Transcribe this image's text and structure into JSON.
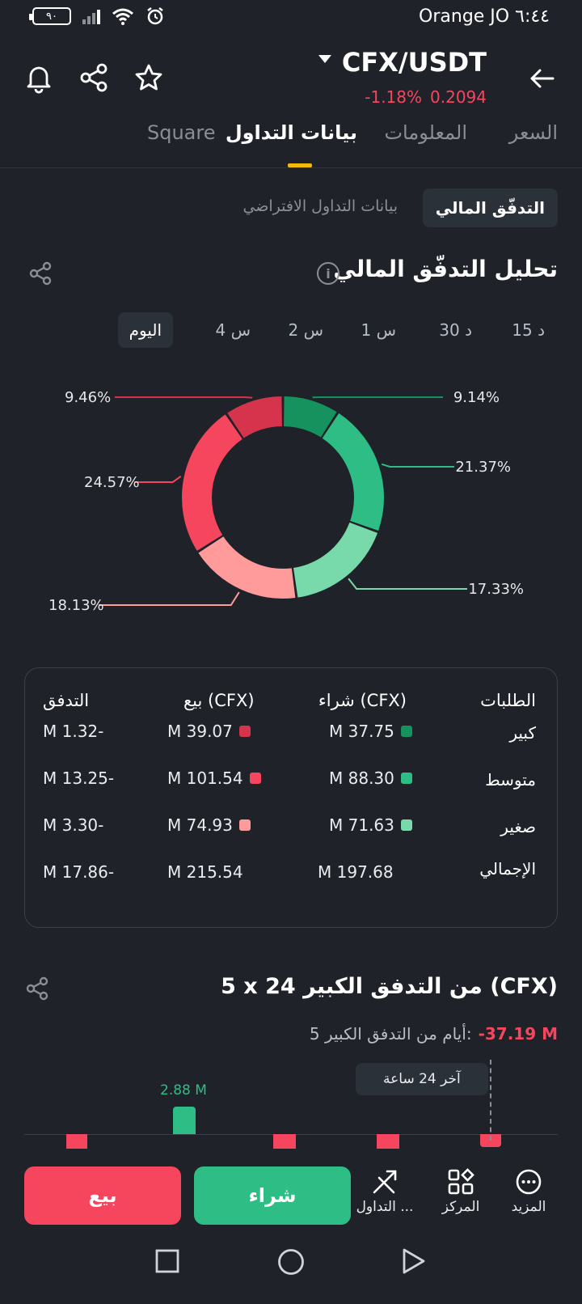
{
  "status_bar": {
    "time": "٦:٤٤",
    "carrier": "Orange JO",
    "battery": "٩٠"
  },
  "header": {
    "pair": "CFX/USDT",
    "price": "0.2094",
    "change": "-1.18%"
  },
  "tabs": [
    {
      "label": "السعر"
    },
    {
      "label": "المعلومات"
    },
    {
      "label": "بيانات التداول"
    },
    {
      "label": "Square"
    }
  ],
  "subtabs": {
    "active": "التدفّق المالي",
    "other": "بيانات التداول الافتراضي"
  },
  "fund_flow": {
    "title": "تحليل التدفّق المالي",
    "info_icon": "i",
    "periods": [
      "15 د",
      "30 د",
      "1 س",
      "2 س",
      "4 س",
      "اليوم"
    ],
    "active_period": "اليوم"
  },
  "donut": {
    "segments": [
      {
        "label": "9.14%",
        "value": 9.14,
        "color": "#16925f"
      },
      {
        "label": "21.37%",
        "value": 21.37,
        "color": "#2ebd85"
      },
      {
        "label": "17.33%",
        "value": 17.33,
        "color": "#78d9aa"
      },
      {
        "label": "18.13%",
        "value": 18.13,
        "color": "#ff9b9b"
      },
      {
        "label": "24.57%",
        "value": 24.57,
        "color": "#f6465d"
      },
      {
        "label": "9.46%",
        "value": 9.46,
        "color": "#d6334d"
      }
    ]
  },
  "table": {
    "headers": {
      "orders": "الطلبات",
      "buy": "شراء (CFX)",
      "sell": "بيع (CFX)",
      "flow": "التدفق"
    },
    "rows": [
      {
        "label": "كبير",
        "buy": "M 37.75",
        "sell": "M 39.07",
        "flow": "M 1.32-",
        "buy_color": "#16925f",
        "sell_color": "#d6334d"
      },
      {
        "label": "متوسط",
        "buy": "M 88.30",
        "sell": "M 101.54",
        "flow": "M 13.25-",
        "buy_color": "#2ebd85",
        "sell_color": "#f6465d"
      },
      {
        "label": "صغير",
        "buy": "M 71.63",
        "sell": "M 74.93",
        "flow": "M 3.30-",
        "buy_color": "#78d9aa",
        "sell_color": "#ff9b9b"
      }
    ],
    "total": {
      "label": "الإجمالي",
      "buy": "M 197.68",
      "sell": "M 215.54",
      "flow": "M 17.86-"
    }
  },
  "large_flow": {
    "title": "5 x 24 من التدفق الكبير (CFX)",
    "summary_label": "5 أيام من التدفق الكبير:",
    "summary_value": "-37.19 M",
    "bar_label": "2.88 M",
    "tooltip": "آخر 24 ساعة"
  },
  "bottom_bar": {
    "sell": "بيع",
    "buy": "شراء",
    "trade": "التداول ...",
    "center": "المركز",
    "more": "المزيد"
  },
  "colors": {
    "background": "#1f2329",
    "up": "#2ebd85",
    "down": "#f6465d",
    "accent": "#f0b90b"
  }
}
